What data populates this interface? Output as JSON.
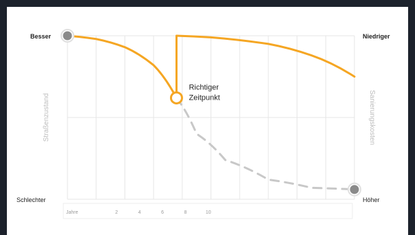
{
  "chart_data": {
    "type": "line",
    "title": "",
    "y_left_label": "Straßenzustand",
    "y_right_label": "Sanierungskosten",
    "y_left_top": "Besser",
    "y_left_bottom": "Schlechter",
    "y_right_top": "Niedriger",
    "y_right_bottom": "Höher",
    "x_tick_labels": [
      "Jahre",
      "2",
      "4",
      "6",
      "8",
      "10"
    ],
    "annotation": "Richtiger\nZeitpunkt",
    "colors": {
      "accent": "#f5a623",
      "dashed": "#c8c8c8",
      "grid": "#e6e6e6",
      "endpoint": "#8a8a8a"
    },
    "ylim": [
      0,
      100
    ],
    "series": [
      {
        "style": "solid",
        "x": [
          0,
          1,
          2,
          3,
          3.8
        ],
        "y": [
          100,
          98,
          93,
          82,
          62
        ]
      },
      {
        "style": "solid",
        "x": [
          3.8,
          3.8,
          5,
          7,
          8.5,
          10
        ],
        "y": [
          62,
          100,
          99,
          95,
          88,
          75
        ]
      },
      {
        "style": "dashed",
        "x": [
          3.8,
          4.5,
          5.5,
          7,
          8.5,
          10
        ],
        "y": [
          62,
          40,
          24,
          12,
          7,
          6
        ]
      }
    ]
  }
}
